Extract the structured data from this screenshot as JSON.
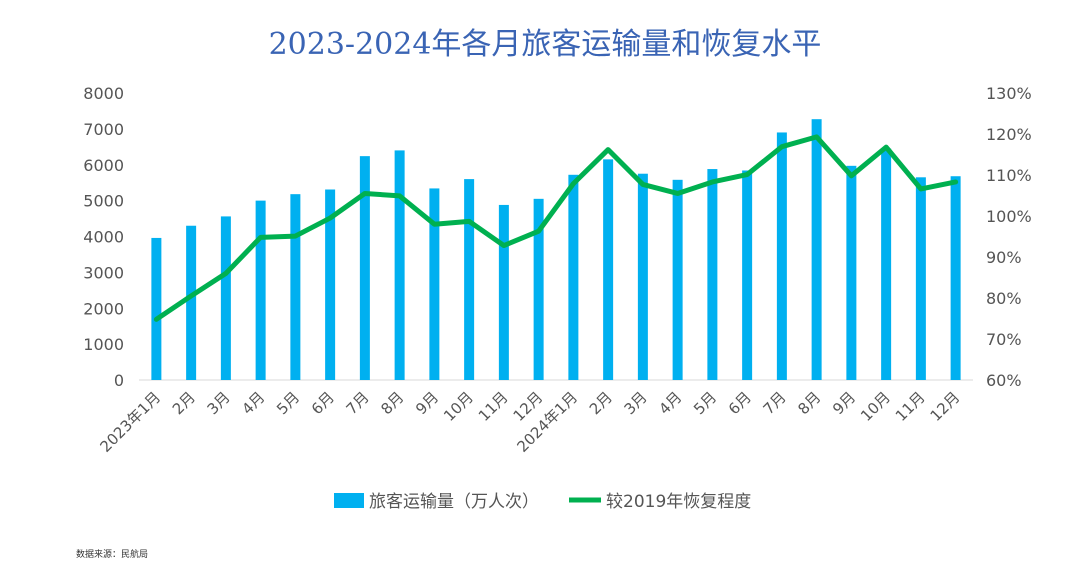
{
  "chart_data": {
    "type": "bar",
    "title": "2023-2024年各月旅客运输量和恢复水平",
    "categories": [
      "2023年1月",
      "2月",
      "3月",
      "4月",
      "5月",
      "6月",
      "7月",
      "8月",
      "9月",
      "10月",
      "11月",
      "12月",
      "2024年1月",
      "2月",
      "3月",
      "4月",
      "5月",
      "6月",
      "7月",
      "8月",
      "9月",
      "10月",
      "11月",
      "12月"
    ],
    "series": [
      {
        "name": "旅客运输量（万人次）",
        "type": "bar",
        "axis": "left",
        "color": "#00b0f0",
        "values": [
          3960,
          4300,
          4560,
          5000,
          5180,
          5310,
          6240,
          6400,
          5340,
          5600,
          4880,
          5050,
          5720,
          6150,
          5750,
          5580,
          5880,
          5840,
          6900,
          7270,
          5970,
          6450,
          5650,
          5680
        ]
      },
      {
        "name": "较2019年恢复程度",
        "type": "line",
        "axis": "right",
        "color": "#00b050",
        "values": [
          74.8,
          80.5,
          86.0,
          94.8,
          95.1,
          99.5,
          105.5,
          104.9,
          98.0,
          98.7,
          92.8,
          96.3,
          107.9,
          116.2,
          107.7,
          105.5,
          108.3,
          110.1,
          116.9,
          119.3,
          109.8,
          116.8,
          106.6,
          108.3
        ]
      }
    ],
    "ylim_left": [
      0,
      8000
    ],
    "yticks_left": [
      "0",
      "1000",
      "2000",
      "3000",
      "4000",
      "5000",
      "6000",
      "7000",
      "8000"
    ],
    "ylim_right": [
      60,
      130
    ],
    "yticks_right": [
      "60%",
      "70%",
      "80%",
      "90%",
      "100%",
      "110%",
      "120%",
      "130%"
    ],
    "grid": false,
    "legend_position": "bottom"
  },
  "source_note": "数据来源：民航局"
}
